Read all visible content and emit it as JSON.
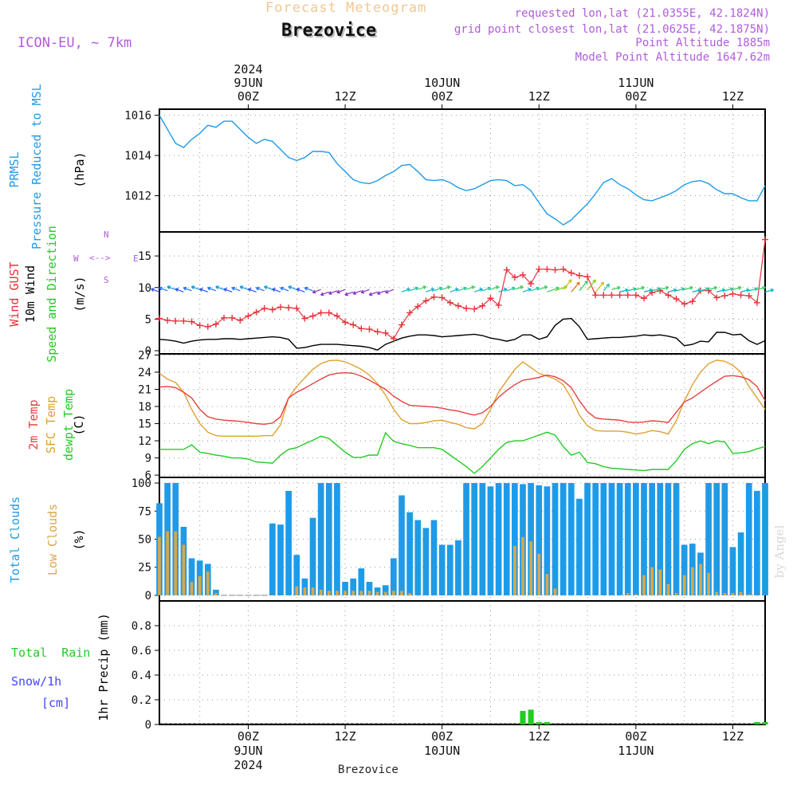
{
  "header": {
    "top_title": "Forecast Meteogram",
    "location": "Brezovice",
    "model": "ICON-EU, ~ 7km",
    "requested": "requested lon,lat (21.0355E, 42.1824N)",
    "grid_point": "grid point closest lon,lat (21.0625E, 42.1875N)",
    "point_altitude": "Point Altitude 1885m",
    "model_altitude": "Model Point Altitude 1647.62m",
    "footer_location": "Brezovice",
    "watermark": "by Angel"
  },
  "time_axis": {
    "year": "2024",
    "labels": [
      {
        "time": "00Z",
        "date": "9JUN",
        "hour": 24
      },
      {
        "time": "12Z",
        "date": "",
        "hour": 36
      },
      {
        "time": "00Z",
        "date": "10JUN",
        "hour": 48
      },
      {
        "time": "12Z",
        "date": "",
        "hour": 60
      },
      {
        "time": "00Z",
        "date": "11JUN",
        "hour": 72
      },
      {
        "time": "12Z",
        "date": "",
        "hour": 84
      }
    ],
    "range_hours": [
      13,
      88
    ]
  },
  "panel_labels": {
    "pressure": {
      "short": "PRMSL",
      "long": "Pressure Reduced to MSL",
      "unit": "(hPa)"
    },
    "wind": {
      "gust": "Wind GUST",
      "wind10": "10m Wind",
      "speed_dir": "Speed and Direction",
      "unit": "(m/s)",
      "compass_n": "N",
      "compass_s": "S",
      "compass_w": "W",
      "compass_e": "E"
    },
    "temp": {
      "t2m": "2m Temp",
      "sfc": "SFC Temp",
      "dew": "dewpt Temp",
      "unit": "(C)"
    },
    "clouds": {
      "total": "Total Clouds",
      "low": "Low Clouds",
      "unit": "(%)"
    },
    "precip": {
      "total_rain": "Total  Rain",
      "snow": "Snow/1h",
      "snow_unit": "[cm]",
      "axis": "1hr Precip (mm)"
    }
  },
  "colors": {
    "pressure": "#1e9be8",
    "gust": "#e8323c",
    "wind10": "#000000",
    "t2m": "#e84040",
    "sfc": "#e0a030",
    "dew": "#22cc22",
    "total_cloud": "#1e9be8",
    "low_cloud": "#d8a848",
    "rain": "#22cc22",
    "snow": "#4444ff",
    "header_orange": "#f0c890",
    "purple": "#b05cdc"
  },
  "chart_data": [
    {
      "type": "line",
      "name": "pressure",
      "ylim": [
        1010.2,
        1016.3
      ],
      "yticks": [
        1012,
        1014,
        1016
      ],
      "x": [
        13,
        14,
        15,
        16,
        17,
        18,
        19,
        20,
        21,
        22,
        23,
        24,
        25,
        26,
        27,
        28,
        29,
        30,
        31,
        32,
        33,
        34,
        35,
        36,
        37,
        38,
        39,
        40,
        41,
        42,
        43,
        44,
        45,
        46,
        47,
        48,
        49,
        50,
        51,
        52,
        53,
        54,
        55,
        56,
        57,
        58,
        59,
        60,
        61,
        62,
        63,
        64,
        65,
        66,
        67,
        68,
        69,
        70,
        71,
        72,
        73,
        74,
        75,
        76,
        77,
        78,
        79,
        80,
        81,
        82,
        83,
        84,
        85,
        86,
        87,
        88
      ],
      "series": [
        {
          "values": [
            1016.0,
            1015.3,
            1014.6,
            1014.4,
            1014.8,
            1015.1,
            1015.5,
            1015.4,
            1015.7,
            1015.7,
            1015.3,
            1014.9,
            1014.6,
            1014.8,
            1014.7,
            1014.3,
            1013.9,
            1013.75,
            1013.9,
            1014.2,
            1014.2,
            1014.15,
            1013.6,
            1013.2,
            1012.8,
            1012.65,
            1012.6,
            1012.75,
            1013.0,
            1013.2,
            1013.5,
            1013.55,
            1013.2,
            1012.8,
            1012.75,
            1012.8,
            1012.65,
            1012.4,
            1012.25,
            1012.35,
            1012.55,
            1012.75,
            1012.8,
            1012.75,
            1012.5,
            1012.55,
            1012.25,
            1011.65,
            1011.1,
            1010.85,
            1010.55,
            1010.8,
            1011.2,
            1011.6,
            1012.1,
            1012.65,
            1012.85,
            1012.55,
            1012.35,
            1012.05,
            1011.8,
            1011.75,
            1011.9,
            1012.05,
            1012.25,
            1012.55,
            1012.7,
            1012.75,
            1012.6,
            1012.3,
            1012.1,
            1012.1,
            1011.9,
            1011.75,
            1011.75,
            1012.5
          ]
        }
      ]
    },
    {
      "type": "line",
      "name": "wind",
      "ylim": [
        -0.5,
        18.8
      ],
      "yticks": [
        0,
        5,
        10,
        15
      ],
      "x": [
        13,
        14,
        15,
        16,
        17,
        18,
        19,
        20,
        21,
        22,
        23,
        24,
        25,
        26,
        27,
        28,
        29,
        30,
        31,
        32,
        33,
        34,
        35,
        36,
        37,
        38,
        39,
        40,
        41,
        42,
        43,
        44,
        45,
        46,
        47,
        48,
        49,
        50,
        51,
        52,
        53,
        54,
        55,
        56,
        57,
        58,
        59,
        60,
        61,
        62,
        63,
        64,
        65,
        66,
        67,
        68,
        69,
        70,
        71,
        72,
        73,
        74,
        75,
        76,
        77,
        78,
        79,
        80,
        81,
        82,
        83,
        84,
        85,
        86,
        87,
        88
      ],
      "series": [
        {
          "key": "gust",
          "values": [
            5.1,
            4.8,
            4.7,
            4.7,
            4.6,
            4.0,
            3.8,
            4.2,
            5.2,
            5.2,
            4.8,
            5.5,
            6.1,
            6.7,
            6.5,
            6.9,
            6.8,
            6.7,
            5.1,
            5.5,
            6.0,
            6.0,
            5.5,
            4.5,
            4.1,
            3.5,
            3.4,
            3.0,
            2.8,
            1.9,
            4.1,
            6.0,
            7.0,
            7.9,
            8.5,
            8.4,
            7.6,
            7.1,
            6.7,
            6.6,
            7.1,
            8.3,
            7.2,
            12.8,
            11.6,
            12.0,
            10.6,
            12.9,
            12.9,
            12.8,
            12.9,
            12.3,
            11.9,
            11.7,
            8.8,
            8.8,
            8.8,
            8.8,
            8.8,
            8.8,
            8.3,
            9.2,
            9.5,
            8.8,
            8.2,
            7.4,
            7.8,
            9.5,
            9.5,
            8.4,
            8.7,
            9.0,
            8.8,
            8.7,
            7.6,
            17.6
          ]
        },
        {
          "key": "wind10",
          "values": [
            1.8,
            1.7,
            1.5,
            1.2,
            1.5,
            1.7,
            1.8,
            1.8,
            1.9,
            1.9,
            1.8,
            1.9,
            2.0,
            2.1,
            2.2,
            2.1,
            1.8,
            0.4,
            0.5,
            0.8,
            1.0,
            1.0,
            1.0,
            0.9,
            0.8,
            0.7,
            0.5,
            0.1,
            1.0,
            1.5,
            2.0,
            2.3,
            2.5,
            2.5,
            2.4,
            2.2,
            2.3,
            2.4,
            2.5,
            2.6,
            2.4,
            2.0,
            1.8,
            1.5,
            1.8,
            2.5,
            2.5,
            1.8,
            2.2,
            4.0,
            5.0,
            5.1,
            3.8,
            1.8,
            1.9,
            2.0,
            2.1,
            2.1,
            2.2,
            2.3,
            2.5,
            2.4,
            2.5,
            2.3,
            2.0,
            0.8,
            1.0,
            1.5,
            1.4,
            2.9,
            2.9,
            2.5,
            2.6,
            1.6,
            1.0,
            1.6
          ]
        }
      ]
    },
    {
      "type": "line",
      "name": "temperature",
      "ylim": [
        5.6,
        27.2
      ],
      "yticks": [
        6,
        9,
        12,
        15,
        18,
        21,
        24,
        27
      ],
      "x": [
        13,
        14,
        15,
        16,
        17,
        18,
        19,
        20,
        21,
        22,
        23,
        24,
        25,
        26,
        27,
        28,
        29,
        30,
        31,
        32,
        33,
        34,
        35,
        36,
        37,
        38,
        39,
        40,
        41,
        42,
        43,
        44,
        45,
        46,
        47,
        48,
        49,
        50,
        51,
        52,
        53,
        54,
        55,
        56,
        57,
        58,
        59,
        60,
        61,
        62,
        63,
        64,
        65,
        66,
        67,
        68,
        69,
        70,
        71,
        72,
        73,
        74,
        75,
        76,
        77,
        78,
        79,
        80,
        81,
        82,
        83,
        84,
        85,
        86,
        87,
        88
      ],
      "series": [
        {
          "key": "t2m",
          "values": [
            21.4,
            21.5,
            21.3,
            20.5,
            19.5,
            17.5,
            16.2,
            15.8,
            15.6,
            15.5,
            15.4,
            15.2,
            15.0,
            14.9,
            15.1,
            16.2,
            19.5,
            20.5,
            21.2,
            22.0,
            22.8,
            23.5,
            23.8,
            23.9,
            23.8,
            23.3,
            22.6,
            21.8,
            21.0,
            19.8,
            18.9,
            18.2,
            18.1,
            18.0,
            17.9,
            17.7,
            17.4,
            17.2,
            16.8,
            16.5,
            16.9,
            18.0,
            19.6,
            20.8,
            21.8,
            22.6,
            22.8,
            23.1,
            23.5,
            23.2,
            22.5,
            21.3,
            19.0,
            17.1,
            16.0,
            15.8,
            15.7,
            15.6,
            15.3,
            15.2,
            15.3,
            15.5,
            15.4,
            15.2,
            17.0,
            18.8,
            19.5,
            20.5,
            21.5,
            22.4,
            23.3,
            23.4,
            23.2,
            22.7,
            21.5,
            19.0
          ]
        },
        {
          "key": "sfc",
          "values": [
            23.8,
            22.8,
            22.2,
            20.5,
            17.5,
            15.0,
            13.5,
            12.9,
            12.8,
            12.8,
            12.8,
            12.8,
            12.8,
            12.9,
            12.9,
            14.8,
            19.5,
            21.5,
            23.0,
            24.5,
            25.5,
            26.0,
            26.1,
            25.8,
            25.2,
            24.5,
            23.5,
            22.0,
            20.0,
            17.5,
            15.7,
            15.0,
            15.0,
            15.2,
            15.5,
            15.6,
            15.2,
            14.9,
            14.3,
            14.1,
            15.0,
            17.5,
            20.5,
            22.5,
            24.5,
            25.8,
            24.8,
            23.8,
            23.3,
            22.8,
            21.8,
            19.5,
            16.5,
            14.6,
            13.8,
            13.7,
            13.7,
            13.7,
            13.5,
            13.2,
            13.4,
            13.8,
            13.6,
            13.2,
            15.5,
            19.0,
            21.8,
            24.0,
            25.5,
            26.1,
            25.9,
            25.2,
            24.0,
            21.5,
            19.5,
            17.5
          ]
        },
        {
          "key": "dew",
          "values": [
            10.5,
            10.5,
            10.5,
            10.5,
            11.3,
            10.0,
            9.8,
            9.5,
            9.3,
            9.0,
            9.0,
            8.8,
            8.3,
            8.2,
            8.1,
            9.5,
            10.5,
            10.8,
            11.5,
            12.1,
            12.8,
            12.4,
            11.2,
            10.0,
            9.1,
            9.1,
            9.5,
            9.5,
            13.4,
            11.9,
            11.5,
            11.2,
            10.8,
            10.8,
            10.8,
            10.5,
            9.5,
            8.5,
            7.5,
            6.3,
            7.5,
            9.0,
            10.5,
            11.7,
            12.0,
            12.0,
            12.5,
            13.0,
            13.5,
            13.0,
            11.0,
            9.5,
            10.0,
            8.2,
            8.0,
            7.5,
            7.2,
            7.1,
            7.0,
            6.9,
            6.8,
            7.0,
            7.0,
            7.0,
            8.5,
            10.5,
            11.5,
            12.0,
            11.5,
            12.0,
            11.8,
            9.8,
            9.9,
            10.1,
            10.6,
            11.0
          ]
        }
      ]
    },
    {
      "type": "bar",
      "name": "clouds",
      "ylim": [
        -5,
        105
      ],
      "yticks": [
        0,
        25,
        50,
        75,
        100
      ],
      "x": [
        13,
        14,
        15,
        16,
        17,
        18,
        19,
        20,
        21,
        22,
        23,
        24,
        25,
        26,
        27,
        28,
        29,
        30,
        31,
        32,
        33,
        34,
        35,
        36,
        37,
        38,
        39,
        40,
        41,
        42,
        43,
        44,
        45,
        46,
        47,
        48,
        49,
        50,
        51,
        52,
        53,
        54,
        55,
        56,
        57,
        58,
        59,
        60,
        61,
        62,
        63,
        64,
        65,
        66,
        67,
        68,
        69,
        70,
        71,
        72,
        73,
        74,
        75,
        76,
        77,
        78,
        79,
        80,
        81,
        82,
        83,
        84,
        85,
        86,
        87,
        88
      ],
      "series": [
        {
          "key": "total",
          "values": [
            82,
            100,
            100,
            61,
            33,
            31,
            28,
            5,
            0,
            0,
            0,
            0,
            0,
            0,
            64,
            63,
            93,
            36,
            15,
            69,
            100,
            100,
            100,
            12,
            15,
            24,
            12,
            7,
            9,
            33,
            89,
            74,
            67,
            60,
            67,
            45,
            45,
            49,
            100,
            100,
            100,
            97,
            100,
            100,
            100,
            99,
            100,
            98,
            97,
            100,
            100,
            100,
            86,
            100,
            100,
            100,
            100,
            100,
            100,
            100,
            100,
            100,
            100,
            100,
            100,
            45,
            46,
            38,
            100,
            100,
            100,
            43,
            56,
            100,
            93,
            100
          ]
        },
        {
          "key": "low",
          "values": [
            52,
            57,
            57,
            45,
            12,
            17,
            21,
            2,
            0,
            0,
            0,
            0,
            0,
            0,
            0,
            0,
            0,
            8,
            7,
            7,
            5,
            4,
            4,
            4,
            4,
            4,
            4,
            3,
            3,
            4,
            4,
            2,
            0,
            0,
            0,
            0,
            0,
            0,
            0,
            0,
            0,
            0,
            0,
            0,
            44,
            52,
            48,
            37,
            19,
            6,
            0,
            0,
            0,
            0,
            0,
            0,
            0,
            0,
            2,
            1,
            18,
            25,
            23,
            10,
            2,
            18,
            25,
            28,
            20,
            3,
            2,
            2,
            3,
            1,
            0,
            0
          ]
        }
      ]
    },
    {
      "type": "bar",
      "name": "precip",
      "ylim": [
        0,
        1.0
      ],
      "yticks": [
        0,
        0.2,
        0.4,
        0.6,
        0.8
      ],
      "x": [
        58,
        59,
        60,
        61,
        87,
        88
      ],
      "series": [
        {
          "key": "rain",
          "values": [
            0.11,
            0.12,
            0.02,
            0.02,
            0.02,
            0.02
          ]
        }
      ]
    }
  ]
}
